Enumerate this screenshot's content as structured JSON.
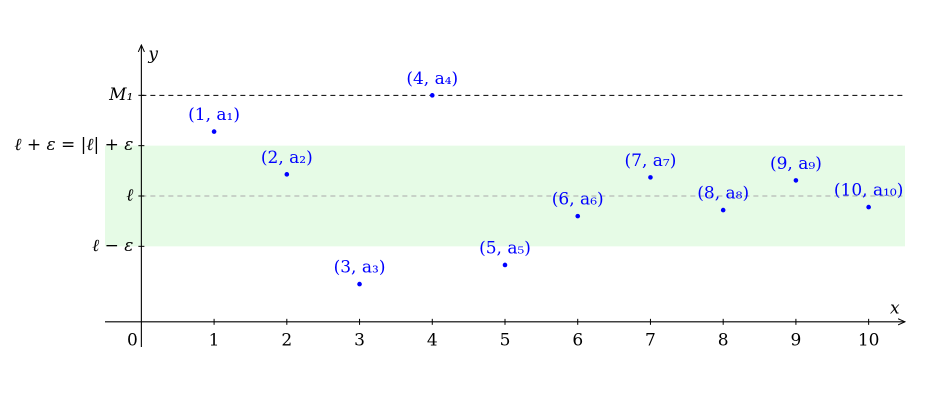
{
  "chart_data": {
    "type": "scatter",
    "x_label": "x",
    "y_label": "y",
    "x": [
      1,
      2,
      3,
      4,
      5,
      6,
      7,
      8,
      9,
      10
    ],
    "values": [
      3.78,
      2.93,
      0.75,
      4.5,
      1.13,
      2.1,
      2.87,
      2.22,
      2.81,
      2.28
    ],
    "labels": [
      "(1, a₁)",
      "(2, a₂)",
      "(3, a₃)",
      "(4, a₄)",
      "(5, a₅)",
      "(6, a₆)",
      "(7, a₇)",
      "(8, a₈)",
      "(9, a₉)",
      "(10, a₁₀)"
    ],
    "color": "#0000ff",
    "xlim": [
      -0.5,
      10.5
    ],
    "ylim": [
      -0.5,
      5.5
    ],
    "xticks": [
      0,
      1,
      2,
      3,
      4,
      5,
      6,
      7,
      8,
      9,
      10
    ],
    "yticks": [
      {
        "value": 1.5,
        "label": "ℓ − ε"
      },
      {
        "value": 2.5,
        "label": "ℓ"
      },
      {
        "value": 3.5,
        "label": "ℓ + ε = |ℓ| + ε"
      },
      {
        "value": 4.5,
        "label": "M₁"
      }
    ],
    "band": {
      "from": 1.5,
      "to": 3.5,
      "color": "#e6fbe6"
    },
    "dashed_lines": [
      {
        "y": 4.5,
        "color": "#000000"
      },
      {
        "y": 2.5,
        "color": "#aaaaaa"
      }
    ]
  }
}
